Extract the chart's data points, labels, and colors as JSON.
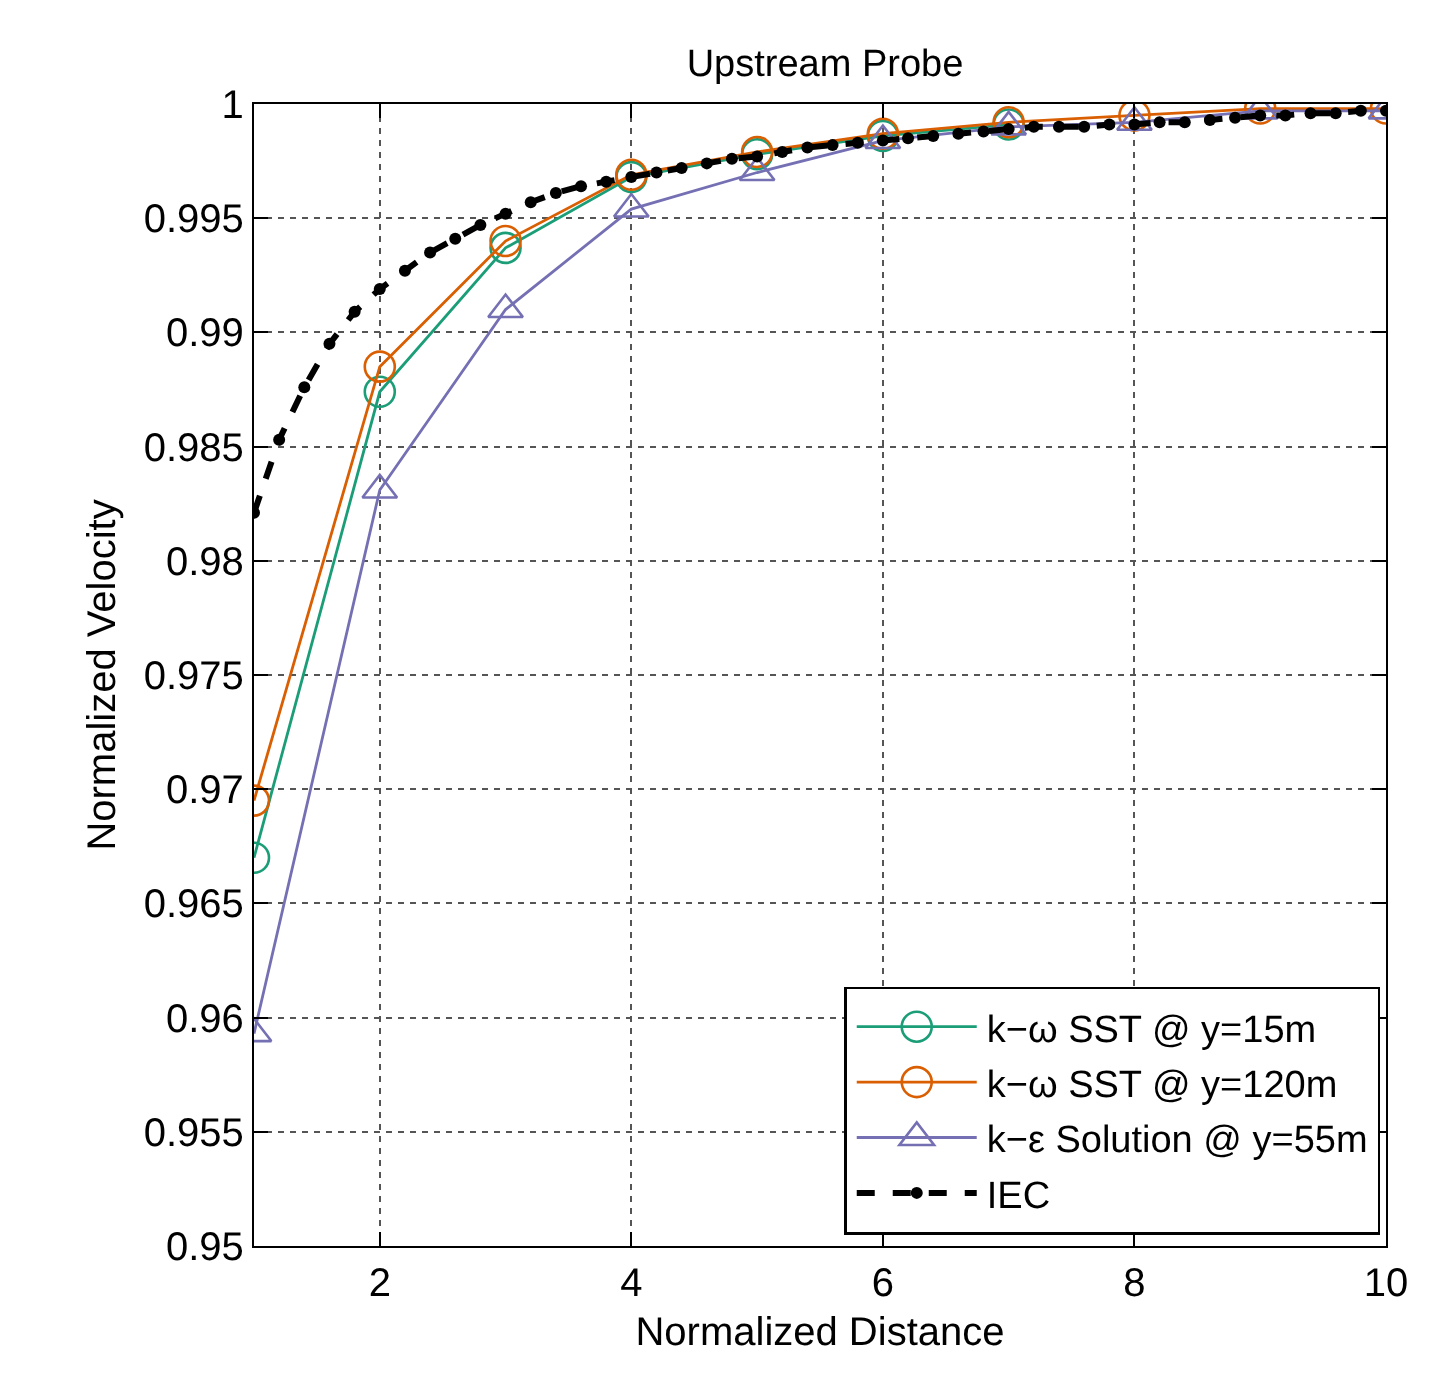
{
  "chart_data": {
    "type": "line",
    "title": "Upstream Probe",
    "xlabel": "Normalized Distance",
    "ylabel": "Normalized Velocity",
    "xlim": [
      1,
      10
    ],
    "xticks": [
      2,
      4,
      6,
      8,
      10
    ],
    "ylim": [
      0.95,
      1
    ],
    "yticks": [
      {
        "value": 0.95,
        "label": "0.95"
      },
      {
        "value": 0.955,
        "label": "0.955"
      },
      {
        "value": 0.96,
        "label": "0.96"
      },
      {
        "value": 0.965,
        "label": "0.965"
      },
      {
        "value": 0.97,
        "label": "0.97"
      },
      {
        "value": 0.975,
        "label": "0.975"
      },
      {
        "value": 0.98,
        "label": "0.98"
      },
      {
        "value": 0.985,
        "label": "0.985"
      },
      {
        "value": 0.99,
        "label": "0.99"
      },
      {
        "value": 0.995,
        "label": "0.995"
      },
      {
        "value": 1,
        "label": "1"
      }
    ],
    "grid": true,
    "legend": "bottom right",
    "series": [
      {
        "name": "k−ω SST @ y=15m",
        "color": "#1b9e77",
        "marker": "circle",
        "line_style": "solid",
        "x": [
          1,
          2,
          3,
          4,
          5,
          6,
          7
        ],
        "values": [
          0.967,
          0.9874,
          0.9937,
          0.9968,
          0.9978,
          0.9986,
          0.9991
        ]
      },
      {
        "name": "k−ω SST @ y=120m",
        "color": "#d95f02",
        "marker": "circle",
        "line_style": "solid",
        "x": [
          1,
          2,
          3,
          4,
          5,
          6,
          7,
          8,
          9,
          10
        ],
        "values": [
          0.9695,
          0.9885,
          0.994,
          0.9969,
          0.9979,
          0.9987,
          0.9992,
          0.9995,
          0.9998,
          0.9998
        ]
      },
      {
        "name": "k−ε Solution @ y=55m",
        "color": "#7570b3",
        "marker": "triangle",
        "line_style": "solid",
        "x": [
          1,
          2,
          3,
          4,
          5,
          6,
          7,
          8,
          9,
          10
        ],
        "values": [
          0.9593,
          0.9831,
          0.991,
          0.9954,
          0.997,
          0.9984,
          0.999,
          0.9992,
          0.9997,
          0.9997
        ]
      },
      {
        "name": "IEC",
        "color": "#000000",
        "marker": "circle",
        "line_style": "dashed",
        "x": [
          1,
          1.2,
          1.4,
          1.6,
          1.8,
          2,
          2.2,
          2.4,
          2.6,
          2.8,
          3,
          3.2,
          3.4,
          3.6,
          3.8,
          4,
          4.2,
          4.4,
          4.6,
          4.8,
          5,
          5.2,
          5.4,
          5.6,
          5.8,
          6,
          6.2,
          6.4,
          6.6,
          6.8,
          7,
          7.2,
          7.4,
          7.6,
          7.8,
          8,
          8.2,
          8.4,
          8.6,
          8.8,
          9,
          9.2,
          9.4,
          9.6,
          9.8,
          10
        ],
        "values": [
          0.9821,
          0.9853,
          0.9876,
          0.9895,
          0.9909,
          0.9919,
          0.9927,
          0.9935,
          0.9941,
          0.9947,
          0.9952,
          0.9957,
          0.9961,
          0.9964,
          0.9966,
          0.9968,
          0.997,
          0.9972,
          0.9974,
          0.9976,
          0.9977,
          0.9979,
          0.9981,
          0.9982,
          0.9983,
          0.9984,
          0.9985,
          0.9986,
          0.9987,
          0.9988,
          0.9989,
          0.999,
          0.999,
          0.999,
          0.9991,
          0.9991,
          0.9992,
          0.9992,
          0.9993,
          0.9994,
          0.9995,
          0.9995,
          0.9996,
          0.9996,
          0.9997,
          0.9997
        ]
      }
    ]
  }
}
